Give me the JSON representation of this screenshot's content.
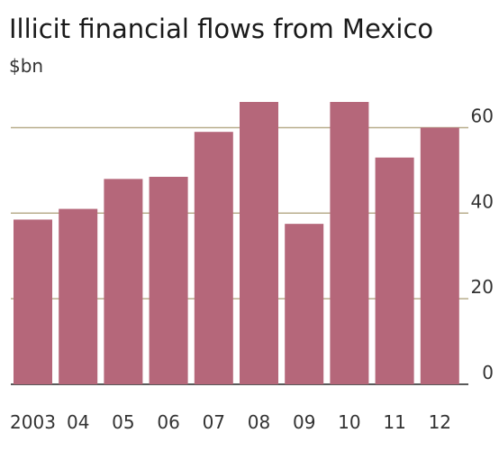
{
  "chart_data": {
    "type": "bar",
    "title": "Illicit financial flows from Mexico",
    "unit_label": "$bn",
    "categories": [
      "2003",
      "04",
      "05",
      "06",
      "07",
      "08",
      "09",
      "10",
      "11",
      "12"
    ],
    "values": [
      38.5,
      41,
      48,
      48.5,
      59,
      66,
      37.5,
      66,
      53,
      60
    ],
    "ylim": [
      0,
      66
    ],
    "yticks": [
      0,
      20,
      40,
      60
    ],
    "ytick_labels": [
      "0",
      "20",
      "40",
      "60"
    ],
    "grid": true,
    "colors": {
      "bar": "#b5677a",
      "grid": "#b8ad8c",
      "baseline": "#5a5a5a",
      "text": "#333333"
    }
  }
}
